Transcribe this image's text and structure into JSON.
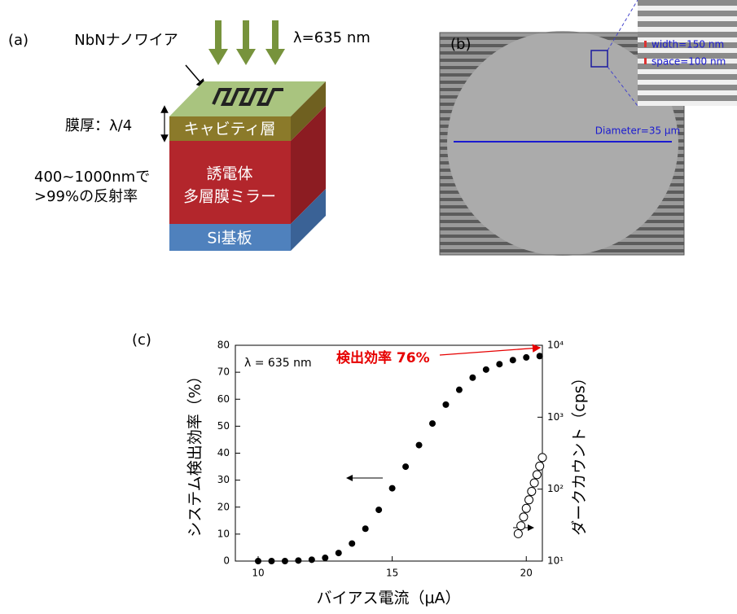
{
  "panel_a": {
    "label": "(a)",
    "nanowire": "NbNナノワイア",
    "wavelength": "λ=635 nm",
    "thickness": "膜厚：λ/4",
    "cavity": "キャビティ層",
    "range": "400~1000nmで",
    "reflectance": ">99%の反射率",
    "mirror_1": "誘電体",
    "mirror_2": "多層膜ミラー",
    "substrate": "Si基板"
  },
  "panel_b": {
    "label": "(b)",
    "width": "width=150 nm",
    "space": "space=100 nm",
    "diameter": "Diameter=35 μm"
  },
  "chart_data": {
    "type": "scatter",
    "panel_label": "(c)",
    "x_label": "バイアス電流（μA）",
    "y_label": "システム検出効率（%）",
    "y2_label": "ダークカウント（cps）",
    "annotations": [
      "λ = 635 nm",
      "検出効率 76%"
    ],
    "xlim": [
      9.15,
      20.6
    ],
    "xticks": [
      10,
      15,
      20
    ],
    "ylim": [
      0,
      80
    ],
    "yticks": [
      0,
      10,
      20,
      30,
      40,
      50,
      60,
      70,
      80
    ],
    "y2lim": [
      10,
      10000
    ],
    "y2_log": true,
    "y2ticks": [
      {
        "value": 10,
        "label": "10¹"
      },
      {
        "value": 100,
        "label": "10²"
      },
      {
        "value": 1000,
        "label": "10³"
      },
      {
        "value": 10000,
        "label": "10⁴"
      }
    ],
    "series": [
      {
        "x": [
          10,
          10.5,
          11,
          11.5,
          12,
          12.5,
          13,
          13.5,
          14,
          14.5,
          15,
          15.5,
          16,
          16.5,
          17,
          17.5,
          18,
          18.5,
          19,
          19.5,
          20,
          20.5
        ],
        "values": [
          0,
          0,
          0,
          0.2,
          0.5,
          1.2,
          3,
          6.5,
          12,
          19,
          27,
          35,
          43,
          51,
          58,
          63.5,
          68,
          71,
          73,
          74.5,
          75.5,
          76
        ],
        "color": "#000000",
        "marker": "filled"
      },
      {
        "x": [
          19.7,
          19.8,
          19.9,
          20.0,
          20.1,
          20.2,
          20.3,
          20.4,
          20.5,
          20.6
        ],
        "values": [
          24,
          31,
          41,
          54,
          71,
          93,
          122,
          159,
          209,
          275
        ],
        "color": "#000000",
        "marker": "hollow",
        "axis": "y2"
      }
    ]
  }
}
